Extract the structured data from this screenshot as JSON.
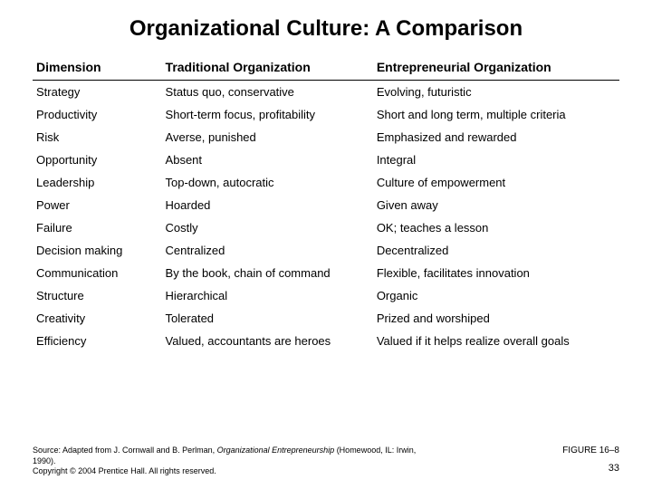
{
  "title": "Organizational Culture: A Comparison",
  "table": {
    "columns": [
      "Dimension",
      "Traditional Organization",
      "Entrepreneurial Organization"
    ],
    "rows": [
      [
        "Strategy",
        "Status quo, conservative",
        "Evolving, futuristic"
      ],
      [
        "Productivity",
        "Short-term focus, profitability",
        "Short and long term, multiple criteria"
      ],
      [
        "Risk",
        "Averse, punished",
        "Emphasized and rewarded"
      ],
      [
        "Opportunity",
        "Absent",
        "Integral"
      ],
      [
        "Leadership",
        "Top-down, autocratic",
        "Culture of empowerment"
      ],
      [
        "Power",
        "Hoarded",
        "Given away"
      ],
      [
        "Failure",
        "Costly",
        "OK; teaches a lesson"
      ],
      [
        "Decision making",
        "Centralized",
        "Decentralized"
      ],
      [
        "Communication",
        "By the book, chain of command",
        "Flexible, facilitates innovation"
      ],
      [
        "Structure",
        "Hierarchical",
        "Organic"
      ],
      [
        "Creativity",
        "Tolerated",
        "Prized and worshiped"
      ],
      [
        "Efficiency",
        "Valued, accountants are heroes",
        "Valued if it helps realize overall goals"
      ]
    ]
  },
  "footer": {
    "source_prefix": "Source: Adapted from J. Cornwall and B. Perlman, ",
    "source_italic": "Organizational Entrepreneurship",
    "source_suffix": " (Homewood, IL: Irwin, 1990).",
    "copyright": "Copyright © 2004 Prentice Hall. All rights reserved.",
    "figure": "FIGURE 16–8",
    "page": "33"
  }
}
